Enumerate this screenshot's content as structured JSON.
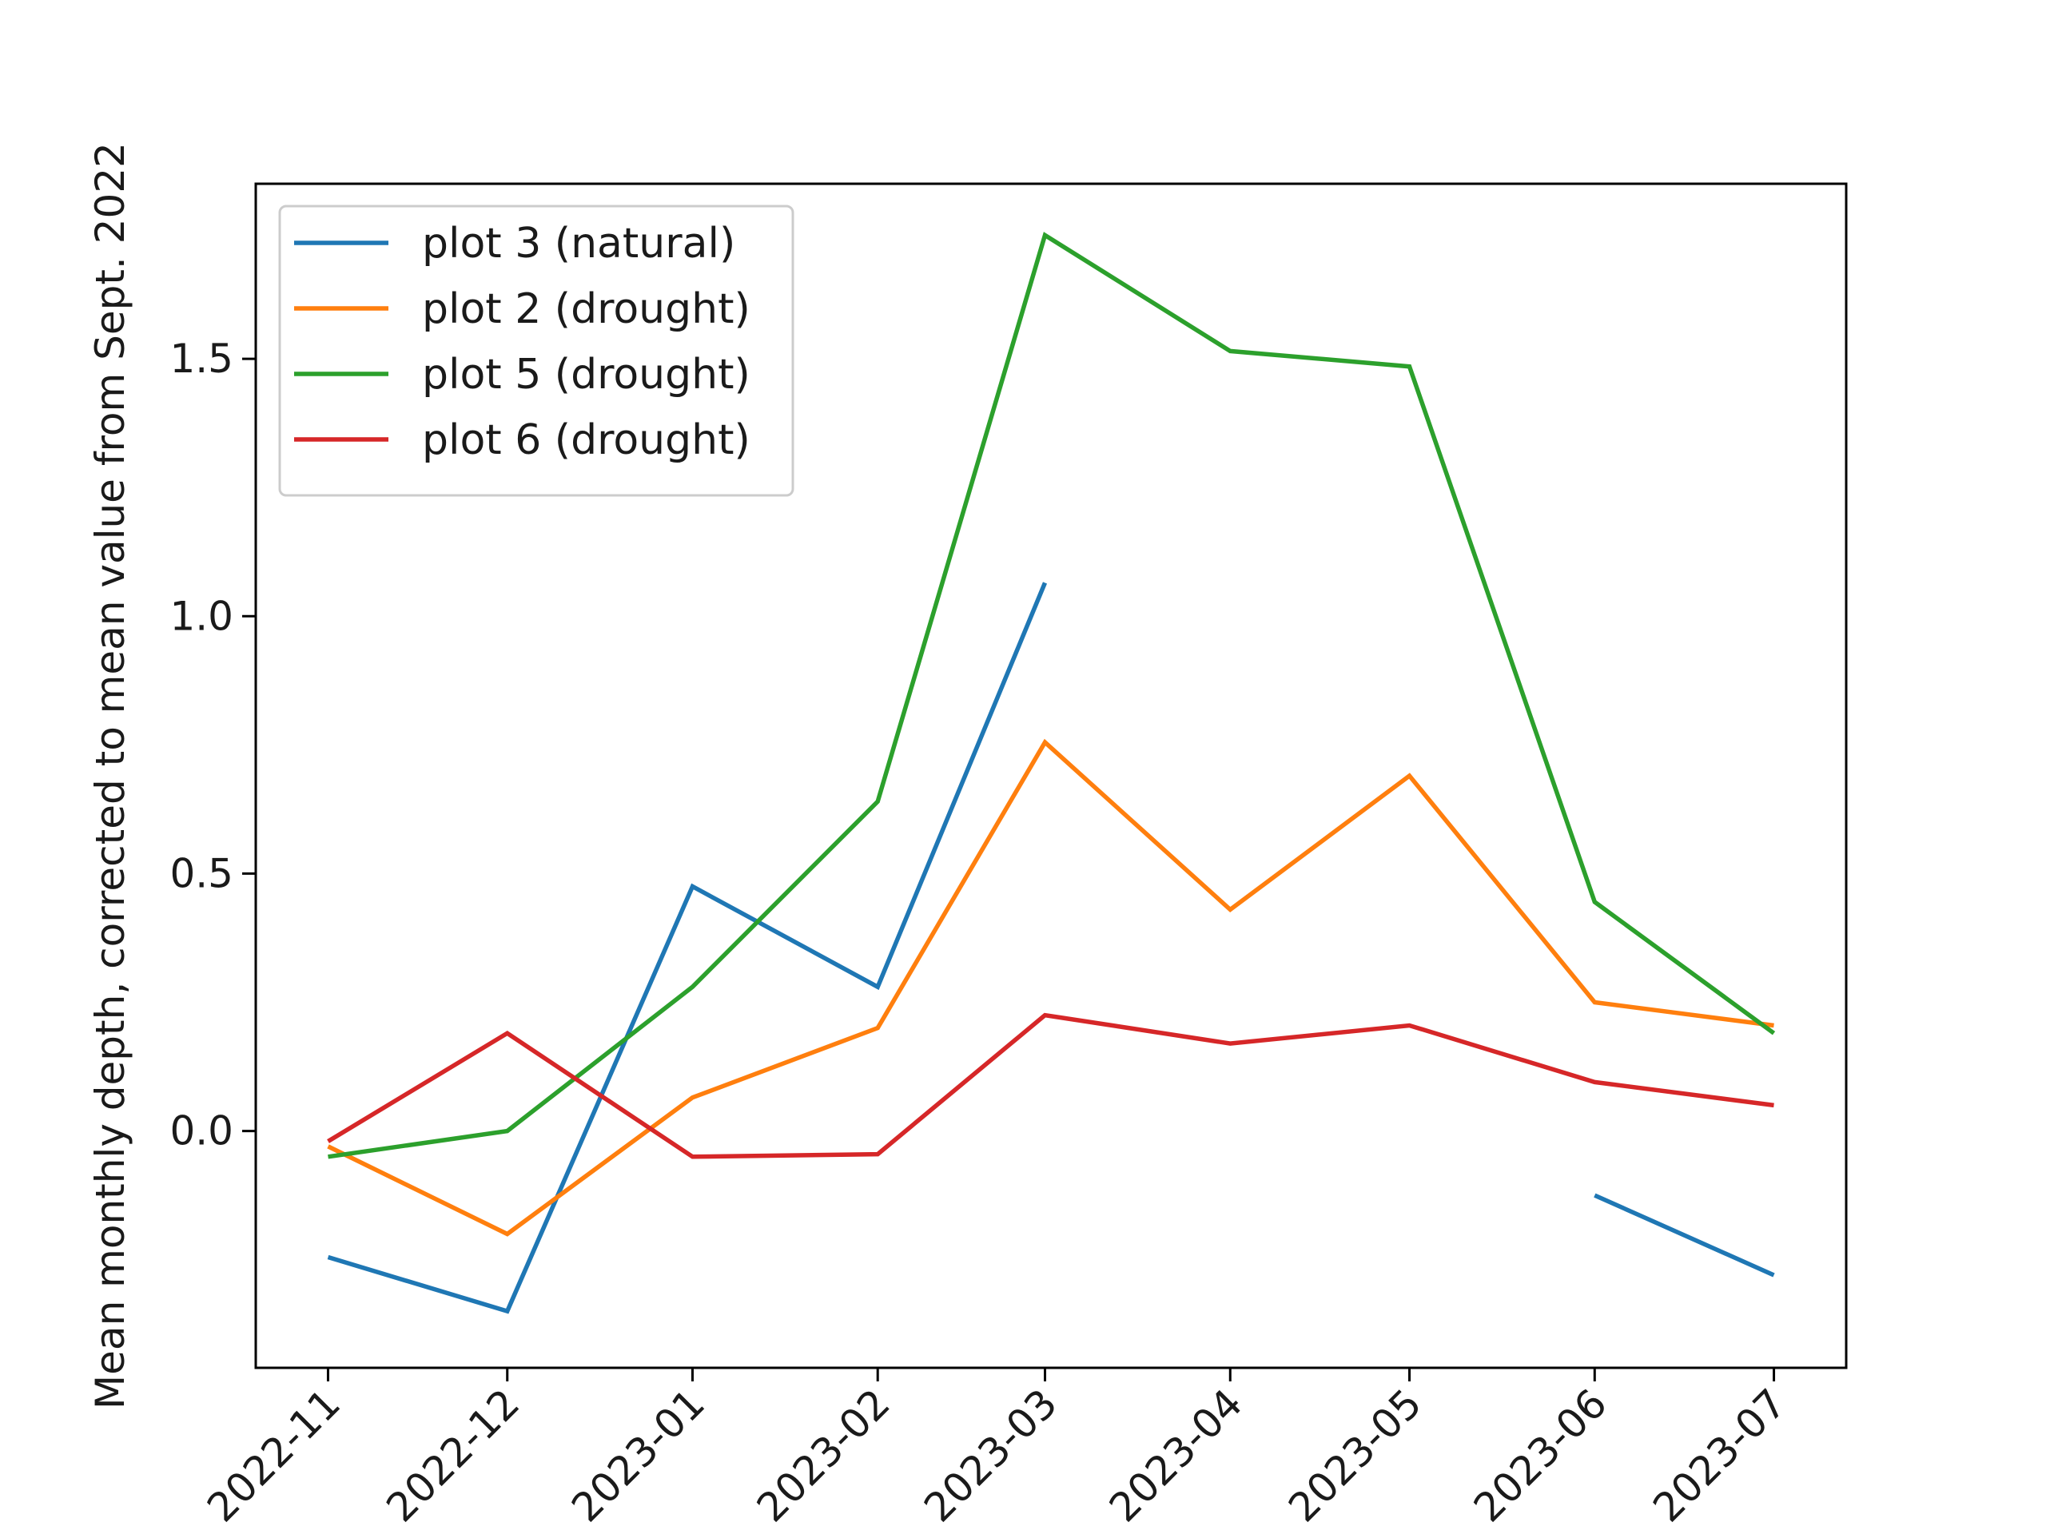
{
  "chart_data": {
    "type": "line",
    "title": "",
    "xlabel": "",
    "ylabel": "Mean monthly depth, corrected to mean value from Sept. 2022",
    "x": [
      "2022-11",
      "2022-12",
      "2023-01",
      "2023-02",
      "2023-03",
      "2023-04",
      "2023-05",
      "2023-06",
      "2023-07"
    ],
    "x_dates": [
      "2022-11-01",
      "2022-12-01",
      "2023-01-01",
      "2023-02-01",
      "2023-03-01",
      "2023-04-01",
      "2023-05-01",
      "2023-06-01",
      "2023-07-01"
    ],
    "ylim": [
      -0.46,
      1.84
    ],
    "yticks": [
      0.0,
      0.5,
      1.0,
      1.5
    ],
    "ytick_labels": [
      "0.0",
      "0.5",
      "1.0",
      "1.5"
    ],
    "grid": false,
    "legend_position": "top-left",
    "series": [
      {
        "name": "plot 3 (natural)",
        "color": "#1f77b4",
        "x": [
          "2022-11-01",
          "2022-12-01",
          "2023-01-01",
          "2023-02-01",
          "2023-03-01",
          "2023-04-01",
          "2023-05-01",
          "2023-06-01",
          "2023-07-01"
        ],
        "values": [
          -0.245,
          -0.35,
          0.475,
          0.28,
          1.065,
          null,
          null,
          -0.125,
          -0.28
        ]
      },
      {
        "name": "plot 2 (drought)",
        "color": "#ff7f0e",
        "x": [
          "2022-11-01",
          "2022-12-01",
          "2023-01-01",
          "2023-02-01",
          "2023-03-01",
          "2023-04-01",
          "2023-05-01",
          "2023-06-01",
          "2023-07-01"
        ],
        "values": [
          -0.03,
          -0.2,
          0.065,
          0.2,
          0.755,
          0.43,
          0.69,
          0.25,
          0.205
        ]
      },
      {
        "name": "plot 5 (drought)",
        "color": "#2ca02c",
        "x": [
          "2022-11-01",
          "2022-12-01",
          "2023-01-01",
          "2023-02-01",
          "2023-03-01",
          "2023-04-01",
          "2023-05-01",
          "2023-06-01",
          "2023-07-01"
        ],
        "values": [
          -0.05,
          0.0,
          0.28,
          0.64,
          1.74,
          1.515,
          1.485,
          0.445,
          0.19
        ]
      },
      {
        "name": "plot 6 (drought)",
        "color": "#d62728",
        "x": [
          "2022-11-01",
          "2022-12-01",
          "2023-01-01",
          "2023-02-01",
          "2023-03-01",
          "2023-04-01",
          "2023-05-01",
          "2023-06-01",
          "2023-07-01"
        ],
        "values": [
          -0.02,
          0.19,
          -0.05,
          -0.045,
          0.225,
          0.17,
          0.205,
          0.095,
          0.05
        ]
      }
    ]
  }
}
